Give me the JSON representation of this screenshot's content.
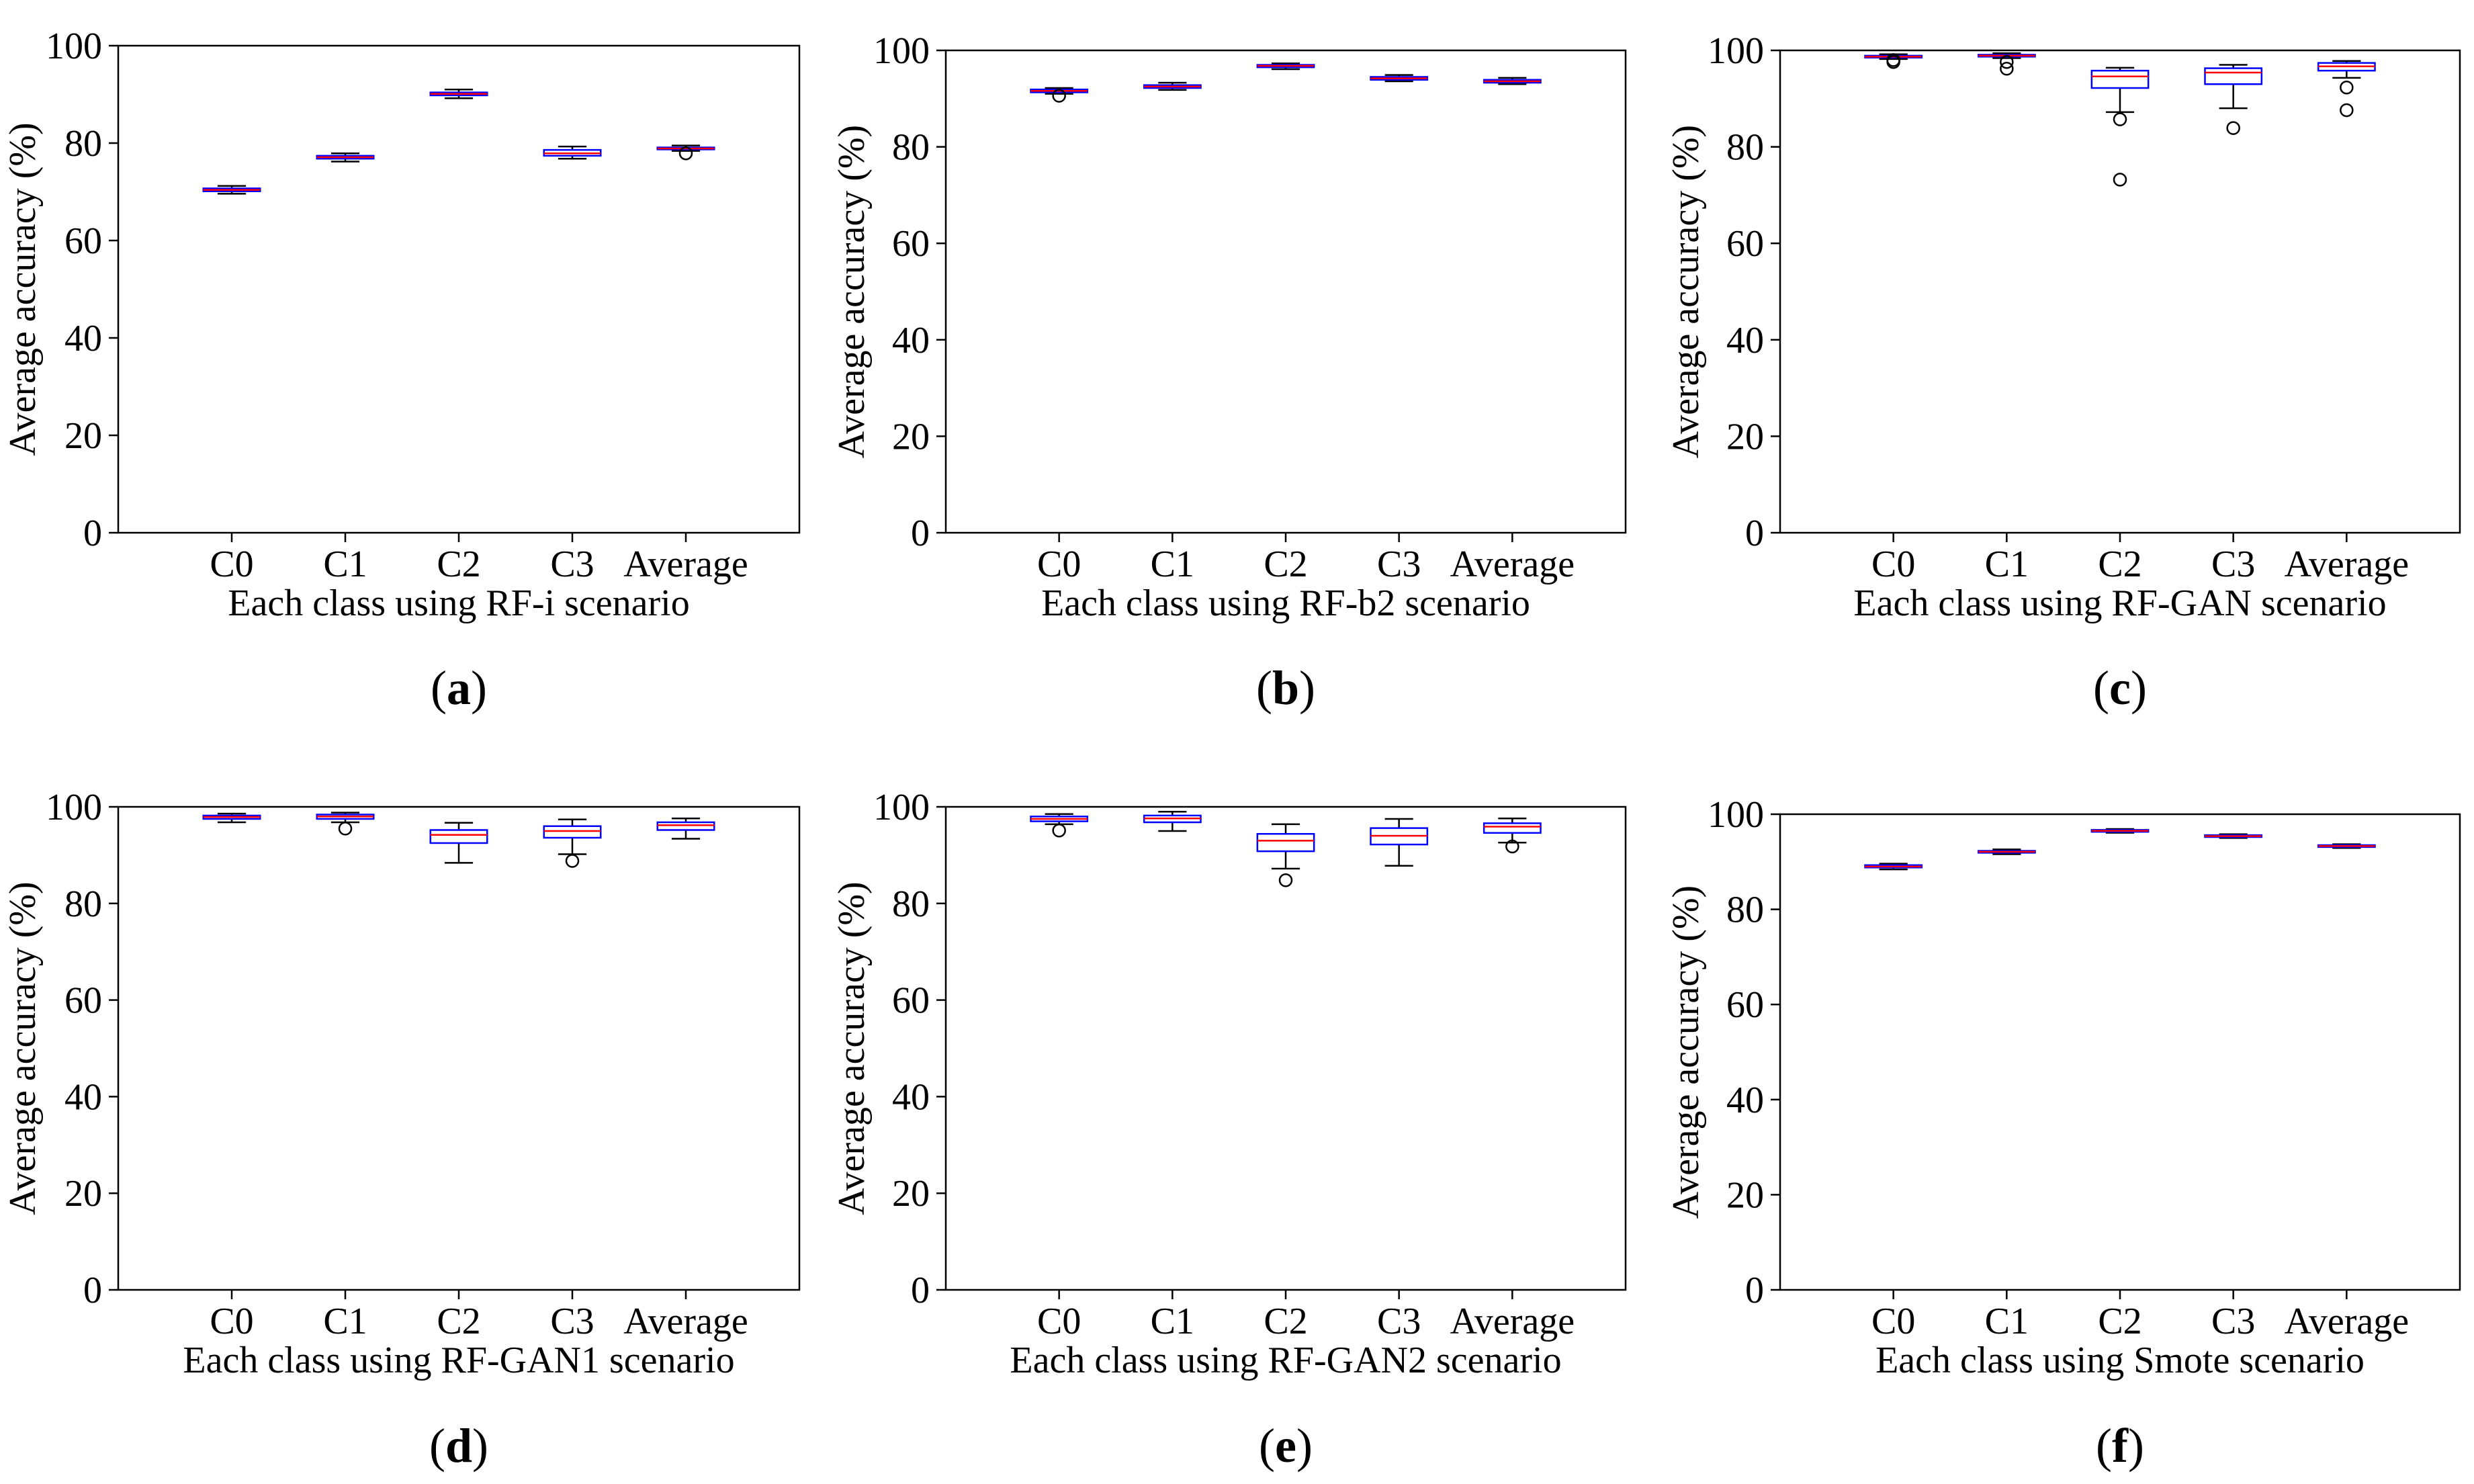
{
  "figure": {
    "description_labels": [
      "(a)",
      "(b)",
      "(c)",
      "(d)",
      "(e)",
      "(f)"
    ]
  },
  "colors": {
    "box_edge": "#0000ff",
    "median": "#ff0000",
    "whisker": "#000000",
    "axes": "#000000",
    "background": "#ffffff"
  },
  "chart_data": [
    {
      "type": "boxplot",
      "panel_letter": "a",
      "categories": [
        "C0",
        "C1",
        "C2",
        "C3",
        "Average"
      ],
      "xlabel": "Each class using RF-i scenario",
      "ylabel": "Average accuracy (%)",
      "ylim": [
        0,
        100
      ],
      "yticks": [
        0,
        20,
        40,
        60,
        80,
        100
      ],
      "boxes": [
        {
          "whislo": 69.6,
          "q1": 70.1,
          "med": 70.4,
          "q3": 70.7,
          "whishi": 71.2,
          "fliers": []
        },
        {
          "whislo": 76.2,
          "q1": 76.8,
          "med": 77.1,
          "q3": 77.4,
          "whishi": 77.9,
          "fliers": []
        },
        {
          "whislo": 89.2,
          "q1": 89.8,
          "med": 90.1,
          "q3": 90.4,
          "whishi": 91.0,
          "fliers": []
        },
        {
          "whislo": 76.8,
          "q1": 77.4,
          "med": 77.9,
          "q3": 78.6,
          "whishi": 79.3,
          "fliers": []
        },
        {
          "whislo": 78.4,
          "q1": 78.7,
          "med": 78.9,
          "q3": 79.1,
          "whishi": 79.5,
          "fliers": [
            77.9
          ]
        }
      ]
    },
    {
      "type": "boxplot",
      "panel_letter": "b",
      "categories": [
        "C0",
        "C1",
        "C2",
        "C3",
        "Average"
      ],
      "xlabel": "Each class using RF-b2 scenario",
      "ylabel": "Average accuracy (%)",
      "ylim": [
        0,
        100
      ],
      "yticks": [
        0,
        20,
        40,
        60,
        80,
        100
      ],
      "boxes": [
        {
          "whislo": 91.0,
          "q1": 91.3,
          "med": 91.6,
          "q3": 91.9,
          "whishi": 92.2,
          "fliers": [
            90.6
          ]
        },
        {
          "whislo": 91.8,
          "q1": 92.2,
          "med": 92.5,
          "q3": 92.8,
          "whishi": 93.3,
          "fliers": []
        },
        {
          "whislo": 96.1,
          "q1": 96.5,
          "med": 96.8,
          "q3": 97.0,
          "whishi": 97.3,
          "fliers": []
        },
        {
          "whislo": 93.6,
          "q1": 93.9,
          "med": 94.2,
          "q3": 94.5,
          "whishi": 94.9,
          "fliers": []
        },
        {
          "whislo": 93.0,
          "q1": 93.3,
          "med": 93.6,
          "q3": 93.9,
          "whishi": 94.3,
          "fliers": []
        }
      ]
    },
    {
      "type": "boxplot",
      "panel_letter": "c",
      "categories": [
        "C0",
        "C1",
        "C2",
        "C3",
        "Average"
      ],
      "xlabel": "Each class using RF-GAN scenario",
      "ylabel": "Average accuracy (%)",
      "ylim": [
        0,
        100
      ],
      "yticks": [
        0,
        20,
        40,
        60,
        80,
        100
      ],
      "boxes": [
        {
          "whislo": 98.2,
          "q1": 98.5,
          "med": 98.7,
          "q3": 98.9,
          "whishi": 99.2,
          "fliers": [
            97.6,
            98.0
          ]
        },
        {
          "whislo": 98.4,
          "q1": 98.7,
          "med": 98.9,
          "q3": 99.1,
          "whishi": 99.4,
          "fliers": [
            96.2,
            97.6
          ]
        },
        {
          "whislo": 87.2,
          "q1": 92.2,
          "med": 94.6,
          "q3": 95.8,
          "whishi": 96.4,
          "fliers": [
            73.2,
            85.7
          ]
        },
        {
          "whislo": 88.0,
          "q1": 93.0,
          "med": 95.4,
          "q3": 96.3,
          "whishi": 97.0,
          "fliers": [
            83.9
          ]
        },
        {
          "whislo": 94.3,
          "q1": 95.8,
          "med": 96.7,
          "q3": 97.4,
          "whishi": 97.8,
          "fliers": [
            87.6,
            92.3
          ]
        }
      ]
    },
    {
      "type": "boxplot",
      "panel_letter": "d",
      "categories": [
        "C0",
        "C1",
        "C2",
        "C3",
        "Average"
      ],
      "xlabel": "Each class using RF-GAN1 scenario",
      "ylabel": "Average accuracy (%)",
      "ylim": [
        0,
        100
      ],
      "yticks": [
        0,
        20,
        40,
        60,
        80,
        100
      ],
      "boxes": [
        {
          "whislo": 96.8,
          "q1": 97.5,
          "med": 97.9,
          "q3": 98.2,
          "whishi": 98.6,
          "fliers": []
        },
        {
          "whislo": 96.8,
          "q1": 97.5,
          "med": 98.0,
          "q3": 98.4,
          "whishi": 98.8,
          "fliers": [
            95.5
          ]
        },
        {
          "whislo": 88.4,
          "q1": 92.5,
          "med": 94.2,
          "q3": 95.2,
          "whishi": 96.7,
          "fliers": []
        },
        {
          "whislo": 90.2,
          "q1": 93.6,
          "med": 95.0,
          "q3": 96.0,
          "whishi": 97.4,
          "fliers": [
            88.8
          ]
        },
        {
          "whislo": 93.4,
          "q1": 95.2,
          "med": 96.2,
          "q3": 96.8,
          "whishi": 97.6,
          "fliers": []
        }
      ]
    },
    {
      "type": "boxplot",
      "panel_letter": "e",
      "categories": [
        "C0",
        "C1",
        "C2",
        "C3",
        "Average"
      ],
      "xlabel": "Each class using RF-GAN2 scenario",
      "ylabel": "Average accuracy (%)",
      "ylim": [
        0,
        100
      ],
      "yticks": [
        0,
        20,
        40,
        60,
        80,
        100
      ],
      "boxes": [
        {
          "whislo": 96.4,
          "q1": 97.0,
          "med": 97.5,
          "q3": 98.0,
          "whishi": 98.5,
          "fliers": [
            95.1
          ]
        },
        {
          "whislo": 95.0,
          "q1": 96.8,
          "med": 97.6,
          "q3": 98.2,
          "whishi": 99.0,
          "fliers": []
        },
        {
          "whislo": 87.2,
          "q1": 90.8,
          "med": 93.0,
          "q3": 94.4,
          "whishi": 96.4,
          "fliers": [
            84.8
          ]
        },
        {
          "whislo": 87.8,
          "q1": 92.2,
          "med": 94.0,
          "q3": 95.6,
          "whishi": 97.5,
          "fliers": []
        },
        {
          "whislo": 92.6,
          "q1": 94.6,
          "med": 95.9,
          "q3": 96.6,
          "whishi": 97.6,
          "fliers": [
            91.8
          ]
        }
      ]
    },
    {
      "type": "boxplot",
      "panel_letter": "f",
      "categories": [
        "C0",
        "C1",
        "C2",
        "C3",
        "Average"
      ],
      "xlabel": "Each class using Smote scenario",
      "ylabel": "Average accuracy (%)",
      "ylim": [
        0,
        100
      ],
      "yticks": [
        0,
        20,
        40,
        60,
        80,
        100
      ],
      "boxes": [
        {
          "whislo": 88.4,
          "q1": 88.8,
          "med": 89.0,
          "q3": 89.3,
          "whishi": 89.6,
          "fliers": []
        },
        {
          "whislo": 91.6,
          "q1": 91.9,
          "med": 92.1,
          "q3": 92.3,
          "whishi": 92.6,
          "fliers": []
        },
        {
          "whislo": 96.1,
          "q1": 96.3,
          "med": 96.5,
          "q3": 96.7,
          "whishi": 96.9,
          "fliers": []
        },
        {
          "whislo": 95.0,
          "q1": 95.2,
          "med": 95.4,
          "q3": 95.6,
          "whishi": 95.8,
          "fliers": []
        },
        {
          "whislo": 92.9,
          "q1": 93.1,
          "med": 93.3,
          "q3": 93.5,
          "whishi": 93.7,
          "fliers": []
        }
      ]
    }
  ]
}
